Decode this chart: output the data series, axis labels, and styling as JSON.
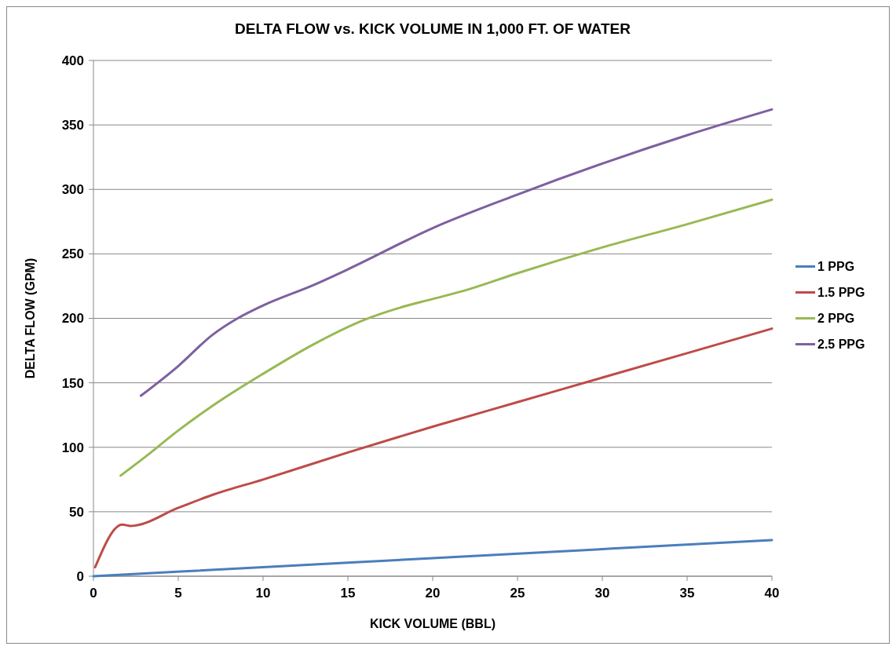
{
  "chart_data": {
    "type": "line",
    "title": "DELTA FLOW vs. KICK VOLUME IN 1,000 FT. OF WATER",
    "xlabel": "KICK VOLUME (BBL)",
    "ylabel": "DELTA FLOW (GPM)",
    "xlim": [
      0,
      40
    ],
    "xticks": [
      0,
      5,
      10,
      15,
      20,
      25,
      30,
      35,
      40
    ],
    "ylim": [
      0,
      400
    ],
    "yticks": [
      0,
      50,
      100,
      150,
      200,
      250,
      300,
      350,
      400
    ],
    "grid": "y",
    "legend": "right",
    "marker": "none",
    "line_style": "solid",
    "series": [
      {
        "name": "1 PPG",
        "color": "#4a7ebb",
        "x": [
          0,
          10,
          20,
          30,
          40
        ],
        "values": [
          0,
          7,
          14,
          21,
          28
        ]
      },
      {
        "name": "1.5 PPG",
        "color": "#be4b48",
        "x": [
          0.1,
          1.7,
          2.2,
          5,
          7,
          10,
          15,
          20,
          25,
          30,
          35,
          40
        ],
        "values": [
          7,
          40,
          39,
          53,
          63,
          75,
          96,
          116,
          135,
          154,
          173,
          192
        ]
      },
      {
        "name": "2 PPG",
        "color": "#98b954",
        "x": [
          1.6,
          3,
          5,
          7,
          10,
          13,
          16,
          18,
          20,
          22,
          25,
          30,
          35,
          40
        ],
        "values": [
          78,
          92,
          113,
          132,
          157,
          180,
          199,
          208,
          215,
          222,
          235,
          255,
          273,
          292
        ]
      },
      {
        "name": "2.5 PPG",
        "color": "#7d60a0",
        "x": [
          2.8,
          5,
          7,
          8.5,
          10,
          13,
          15,
          20,
          25,
          30,
          35,
          40
        ],
        "values": [
          140,
          163,
          187,
          200,
          210,
          226,
          238,
          270,
          296,
          320,
          342,
          362
        ]
      }
    ]
  }
}
